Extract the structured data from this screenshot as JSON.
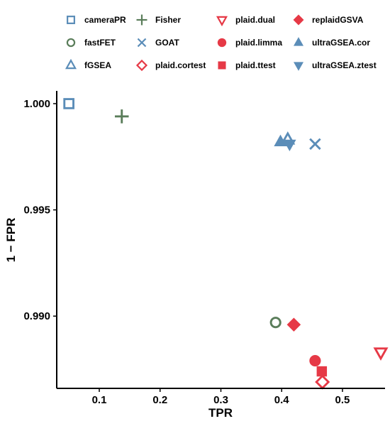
{
  "chart_data": {
    "type": "scatter",
    "xlabel": "TPR",
    "ylabel": "1 − FPR",
    "xlim": [
      0.03,
      0.57
    ],
    "ylim": [
      0.9866,
      1.0006
    ],
    "x_ticks": [
      0.1,
      0.2,
      0.3,
      0.4,
      0.5
    ],
    "y_ticks": [
      0.99,
      0.995,
      1.0
    ],
    "x_tick_labels": [
      "0.1",
      "0.2",
      "0.3",
      "0.4",
      "0.5"
    ],
    "y_tick_labels": [
      "0.990",
      "0.995",
      "1.000"
    ],
    "grid": false,
    "legend_position": "top",
    "colors": {
      "blue": "#5b8db8",
      "green": "#5a7d5a",
      "red": "#e63946"
    },
    "series": [
      {
        "name": "cameraPR",
        "marker": "open-square",
        "color": "#5b8db8",
        "x": 0.05,
        "y": 1.0
      },
      {
        "name": "fastFET",
        "marker": "open-circle",
        "color": "#5a7d5a",
        "x": 0.39,
        "y": 0.9897
      },
      {
        "name": "fGSEA",
        "marker": "open-triangle-up",
        "color": "#5b8db8",
        "x": 0.41,
        "y": 0.9983
      },
      {
        "name": "Fisher",
        "marker": "plus",
        "color": "#5a7d5a",
        "x": 0.137,
        "y": 0.9994
      },
      {
        "name": "GOAT",
        "marker": "cross",
        "color": "#5b8db8",
        "x": 0.455,
        "y": 0.9981
      },
      {
        "name": "plaid.cortest",
        "marker": "open-diamond",
        "color": "#e63946",
        "x": 0.467,
        "y": 0.9869
      },
      {
        "name": "plaid.dual",
        "marker": "open-triangle-down",
        "color": "#e63946",
        "x": 0.563,
        "y": 0.9883
      },
      {
        "name": "plaid.limma",
        "marker": "filled-circle",
        "color": "#e63946",
        "x": 0.455,
        "y": 0.9879
      },
      {
        "name": "plaid.ttest",
        "marker": "filled-square",
        "color": "#e63946",
        "x": 0.466,
        "y": 0.9874
      },
      {
        "name": "replaidGSVA",
        "marker": "filled-diamond",
        "color": "#e63946",
        "x": 0.42,
        "y": 0.9896
      },
      {
        "name": "ultraGSEA.cor",
        "marker": "filled-triangle-up",
        "color": "#5b8db8",
        "x": 0.398,
        "y": 0.9982
      },
      {
        "name": "ultraGSEA.ztest",
        "marker": "filled-triangle-down",
        "color": "#5b8db8",
        "x": 0.413,
        "y": 0.9981
      }
    ],
    "legend_order": [
      "cameraPR",
      "Fisher",
      "plaid.dual",
      "replaidGSVA",
      "fastFET",
      "GOAT",
      "plaid.limma",
      "ultraGSEA.cor",
      "fGSEA",
      "plaid.cortest",
      "plaid.ttest",
      "ultraGSEA.ztest"
    ]
  }
}
